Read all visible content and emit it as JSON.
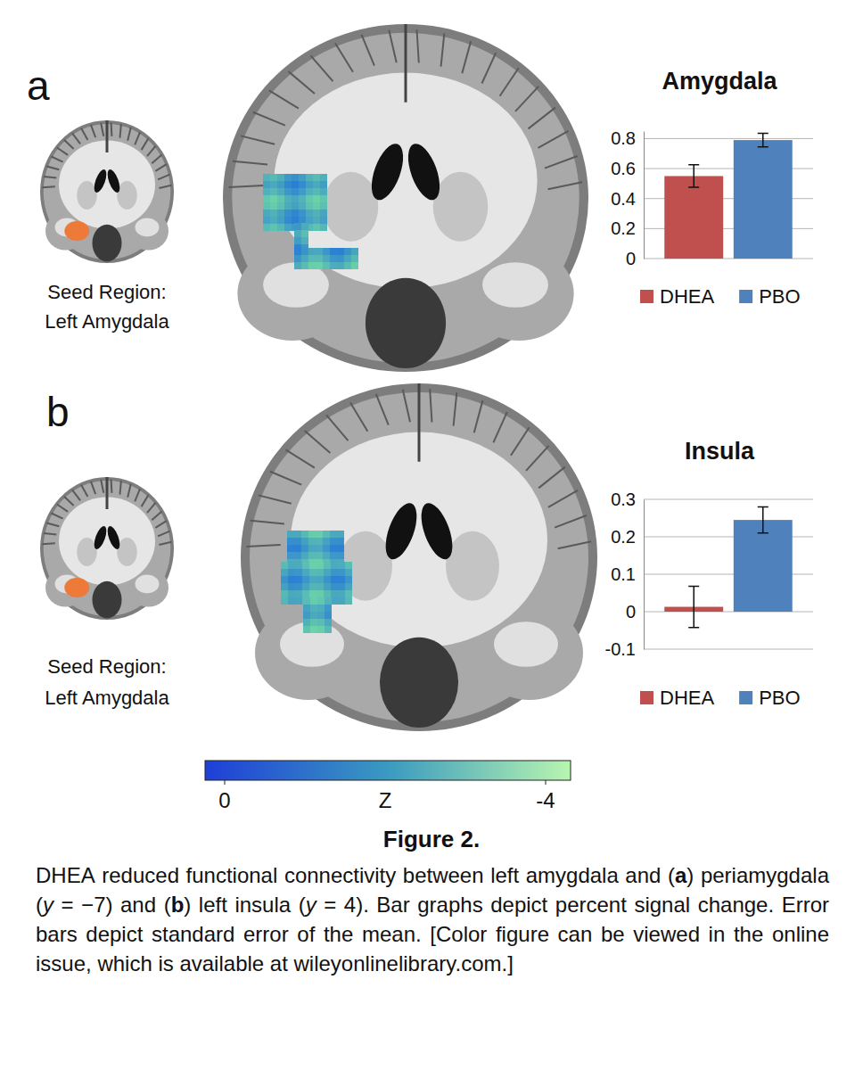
{
  "panels": [
    {
      "letter": "a",
      "seed_label": [
        "Seed Region:",
        "Left Amygdala"
      ]
    },
    {
      "letter": "b",
      "seed_label": [
        "Seed Region:",
        "Left Amygdala"
      ]
    }
  ],
  "chart_data": [
    {
      "type": "bar",
      "title": "Amygdala",
      "categories": [
        "DHEA",
        "PBO"
      ],
      "values": [
        0.55,
        0.79
      ],
      "errors": [
        0.075,
        0.045
      ],
      "colors": [
        "#c0504d",
        "#4f81bd"
      ],
      "ylim": [
        0,
        0.85
      ],
      "yticks": [
        0,
        0.2,
        0.4,
        0.6,
        0.8
      ],
      "grid": true,
      "legend": "bottom",
      "tick_labels": "y"
    },
    {
      "type": "bar",
      "title": "Insula",
      "categories": [
        "DHEA",
        "PBO"
      ],
      "values": [
        0.013,
        0.245
      ],
      "errors": [
        0.055,
        0.035
      ],
      "colors": [
        "#c0504d",
        "#4f81bd"
      ],
      "ylim": [
        -0.1,
        0.3
      ],
      "yticks": [
        -0.1,
        0,
        0.1,
        0.2,
        0.3
      ],
      "grid": true,
      "legend": "bottom",
      "tick_labels": "y"
    }
  ],
  "colorbar": {
    "title": "Z",
    "range": [
      0,
      -4
    ],
    "ticks": [
      0,
      -4
    ]
  },
  "caption": {
    "title": "Figure 2.",
    "runs": [
      {
        "text": "DHEA reduced functional connectivity between left amygdala and (",
        "style": "normal"
      },
      {
        "text": "a",
        "style": "bold"
      },
      {
        "text": ") periamygdala (",
        "style": "normal"
      },
      {
        "text": "y",
        "style": "italic"
      },
      {
        "text": " = −7) and (",
        "style": "normal"
      },
      {
        "text": "b",
        "style": "bold"
      },
      {
        "text": ") left insula (",
        "style": "normal"
      },
      {
        "text": "y",
        "style": "italic"
      },
      {
        "text": " = 4). Bar graphs depict percent signal change. Error bars depict standard error of the mean. [Color figure can be viewed in the online issue, which is available at wileyonlinelibrary.com.]",
        "style": "normal"
      }
    ]
  }
}
